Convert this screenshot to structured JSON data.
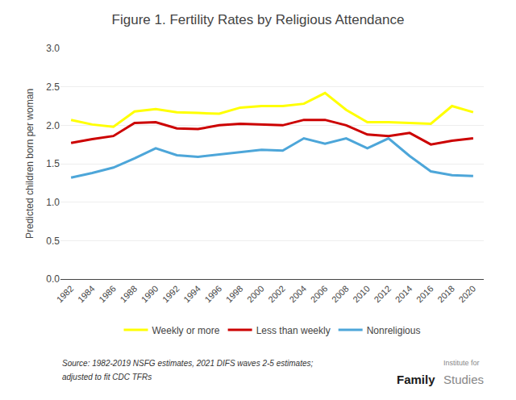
{
  "chart_data": {
    "type": "line",
    "title": "Figure 1. Fertility Rates by Religious Attendance",
    "ylabel": "Predicted children born per woman",
    "x": [
      1982,
      1984,
      1986,
      1988,
      1990,
      1992,
      1994,
      1996,
      1998,
      2000,
      2002,
      2004,
      2006,
      2008,
      2010,
      2012,
      2014,
      2016,
      2018,
      2020
    ],
    "series": [
      {
        "name": "Weekly or more",
        "color": "#ffff00",
        "values": [
          2.07,
          2.01,
          1.98,
          2.18,
          2.21,
          2.17,
          2.16,
          2.15,
          2.23,
          2.25,
          2.25,
          2.28,
          2.42,
          2.2,
          2.04,
          2.04,
          2.03,
          2.02,
          2.25,
          2.17
        ]
      },
      {
        "name": "Less than weekly",
        "color": "#cc0000",
        "values": [
          1.77,
          1.82,
          1.86,
          2.03,
          2.04,
          1.96,
          1.95,
          2.0,
          2.02,
          2.01,
          2.0,
          2.07,
          2.07,
          2.0,
          1.88,
          1.86,
          1.9,
          1.75,
          1.8,
          1.83
        ]
      },
      {
        "name": "Nonreligious",
        "color": "#4da6d9",
        "values": [
          1.32,
          1.38,
          1.45,
          1.57,
          1.7,
          1.61,
          1.59,
          1.62,
          1.65,
          1.68,
          1.67,
          1.83,
          1.76,
          1.83,
          1.7,
          1.83,
          1.6,
          1.4,
          1.35,
          1.34
        ]
      }
    ],
    "xlim": [
      1981,
      2021
    ],
    "xticks": [
      1982,
      1984,
      1986,
      1988,
      1990,
      1992,
      1994,
      1996,
      1998,
      2000,
      2002,
      2004,
      2006,
      2008,
      2010,
      2012,
      2014,
      2016,
      2018,
      2020
    ],
    "ylim": [
      0,
      3.0
    ],
    "yticks": [
      {
        "value": 0,
        "label": "0.0"
      },
      0.5,
      {
        "value": 1.0,
        "label": "1.0"
      },
      1.5,
      {
        "value": 2.0,
        "label": "2.0"
      },
      2.5,
      {
        "value": 3.0,
        "label": "3.0"
      }
    ],
    "grid": true,
    "legend": "bottom",
    "annotations": [
      "Source: 1982-2019 NSFG estimates, 2021 DIFS waves 2-5 estimates;",
      "adjusted to fit CDC TFRs",
      "Institute for",
      "Family",
      "Studies"
    ]
  }
}
